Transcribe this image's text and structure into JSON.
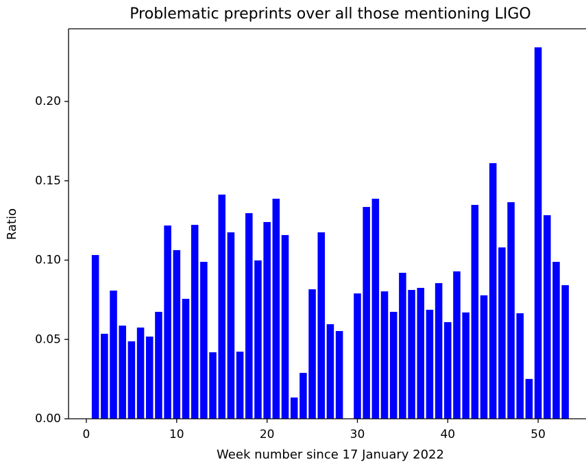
{
  "chart_data": {
    "type": "bar",
    "title": "Problematic preprints over all those mentioning LIGO",
    "x_label": "Week number since 17 January 2022",
    "y_label": "Ratio",
    "color": "#0000ff",
    "bar_width": 0.8,
    "x": [
      1,
      2,
      3,
      4,
      5,
      6,
      7,
      8,
      9,
      10,
      11,
      12,
      13,
      14,
      15,
      16,
      17,
      18,
      19,
      20,
      21,
      22,
      23,
      24,
      25,
      26,
      27,
      28,
      30,
      31,
      32,
      33,
      34,
      35,
      36,
      37,
      38,
      39,
      40,
      41,
      42,
      43,
      44,
      45,
      46,
      47,
      48,
      49,
      50,
      51,
      52,
      53
    ],
    "values": [
      0.1032,
      0.0536,
      0.0808,
      0.0587,
      0.0488,
      0.0575,
      0.0518,
      0.0674,
      0.1218,
      0.1063,
      0.0756,
      0.1222,
      0.0989,
      0.0419,
      0.1413,
      0.1175,
      0.0423,
      0.1296,
      0.0998,
      0.124,
      0.1387,
      0.1158,
      0.0134,
      0.0289,
      0.0816,
      0.1175,
      0.0596,
      0.0553,
      0.079,
      0.1335,
      0.1387,
      0.0803,
      0.0674,
      0.092,
      0.0812,
      0.0825,
      0.0687,
      0.0855,
      0.0609,
      0.0929,
      0.067,
      0.1348,
      0.0778,
      0.1611,
      0.108,
      0.1365,
      0.0665,
      0.0251,
      0.2341,
      0.1283,
      0.0989,
      0.0842
    ],
    "xlim": [
      -1.97,
      55.3
    ],
    "xticks": [
      0,
      10,
      20,
      30,
      40,
      50
    ],
    "ylim": [
      0,
      0.2458
    ],
    "yticks": [
      {
        "value": 0,
        "label": "0.00"
      },
      {
        "value": 0.05,
        "label": "0.05"
      },
      {
        "value": 0.1,
        "label": "0.10"
      },
      {
        "value": 0.15,
        "label": "0.15"
      },
      {
        "value": 0.2,
        "label": "0.20"
      }
    ]
  }
}
